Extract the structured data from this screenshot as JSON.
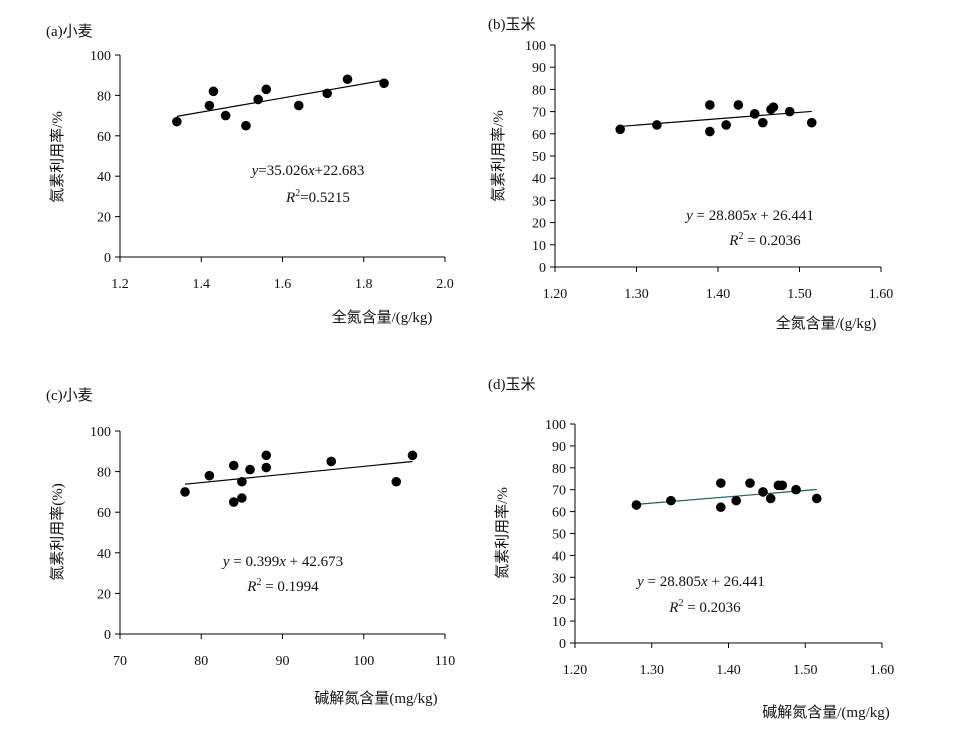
{
  "chart_data": [
    {
      "type": "scatter",
      "title": "(a)小麦",
      "xlabel": "全氮含量/(g/kg)",
      "ylabel": "氮素利用率/%",
      "xlim": [
        1.2,
        2.0
      ],
      "ylim": [
        0,
        100
      ],
      "xticks": [
        1.2,
        1.4,
        1.6,
        1.8,
        2.0
      ],
      "xtick_labels": [
        "1.2",
        "1.4",
        "1.6",
        "1.8",
        "2.0"
      ],
      "yticks": [
        0,
        20,
        40,
        60,
        80,
        100
      ],
      "ytick_labels": [
        "0",
        "20",
        "40",
        "60",
        "80",
        "100"
      ],
      "points": [
        [
          1.34,
          67
        ],
        [
          1.42,
          75
        ],
        [
          1.43,
          82
        ],
        [
          1.46,
          70
        ],
        [
          1.51,
          65
        ],
        [
          1.54,
          78
        ],
        [
          1.56,
          83
        ],
        [
          1.64,
          75
        ],
        [
          1.71,
          81
        ],
        [
          1.76,
          88
        ],
        [
          1.85,
          86
        ]
      ],
      "trendline": {
        "slope": 35.026,
        "intercept": 22.683,
        "x_range": [
          1.34,
          1.85
        ]
      },
      "equation": "y=35.026x+22.683",
      "r2": "R2=0.5215",
      "grid": false,
      "legend": "none"
    },
    {
      "type": "scatter",
      "title": "(b)玉米",
      "xlabel": "全氮含量/(g/kg)",
      "ylabel": "氮素利用率/%",
      "xlim": [
        1.2,
        1.6
      ],
      "ylim": [
        0,
        100
      ],
      "xticks": [
        1.2,
        1.3,
        1.4,
        1.5,
        1.6
      ],
      "xtick_labels": [
        "1.20",
        "1.30",
        "1.40",
        "1.50",
        "1.60"
      ],
      "yticks": [
        0,
        10,
        20,
        30,
        40,
        50,
        60,
        70,
        80,
        90,
        100
      ],
      "ytick_labels": [
        "0",
        "10",
        "20",
        "30",
        "40",
        "50",
        "60",
        "70",
        "80",
        "90",
        "100"
      ],
      "points": [
        [
          1.28,
          62
        ],
        [
          1.325,
          64
        ],
        [
          1.39,
          73
        ],
        [
          1.39,
          61
        ],
        [
          1.41,
          64
        ],
        [
          1.425,
          73
        ],
        [
          1.445,
          69
        ],
        [
          1.455,
          65
        ],
        [
          1.465,
          71
        ],
        [
          1.468,
          72
        ],
        [
          1.488,
          70
        ],
        [
          1.515,
          65
        ]
      ],
      "trendline": {
        "slope": 28.805,
        "intercept": 26.441,
        "x_range": [
          1.28,
          1.515
        ]
      },
      "equation": "y = 28.805x + 26.441",
      "r2": "R2 = 0.2036",
      "grid": false,
      "legend": "none"
    },
    {
      "type": "scatter",
      "title": "(c)小麦",
      "xlabel": "碱解氮含量(mg/kg)",
      "ylabel": "氮素利用率(%)",
      "xlim": [
        70,
        110
      ],
      "ylim": [
        0,
        100
      ],
      "xticks": [
        70,
        80,
        90,
        100,
        110
      ],
      "xtick_labels": [
        "70",
        "80",
        "90",
        "100",
        "110"
      ],
      "yticks": [
        0,
        20,
        40,
        60,
        80,
        100
      ],
      "ytick_labels": [
        "0",
        "20",
        "40",
        "60",
        "80",
        "100"
      ],
      "points": [
        [
          78,
          70
        ],
        [
          81,
          78
        ],
        [
          84,
          83
        ],
        [
          84,
          65
        ],
        [
          85,
          75
        ],
        [
          85,
          67
        ],
        [
          86,
          81
        ],
        [
          88,
          88
        ],
        [
          88,
          82
        ],
        [
          96,
          85
        ],
        [
          104,
          75
        ],
        [
          106,
          88
        ]
      ],
      "trendline": {
        "slope": 0.399,
        "intercept": 42.673,
        "x_range": [
          78,
          106
        ]
      },
      "equation": "y = 0.399x + 42.673",
      "r2": "R2 = 0.1994",
      "grid": false,
      "legend": "none"
    },
    {
      "type": "scatter",
      "title": "(d)玉米",
      "xlabel": "碱解氮含量/(mg/kg)",
      "ylabel": "氮素利用率/%",
      "xlim": [
        1.2,
        1.6
      ],
      "ylim": [
        0,
        100
      ],
      "xticks": [
        1.2,
        1.3,
        1.4,
        1.5,
        1.6
      ],
      "xtick_labels": [
        "1.20",
        "1.30",
        "1.40",
        "1.50",
        "1.60"
      ],
      "yticks": [
        0,
        10,
        20,
        30,
        40,
        50,
        60,
        70,
        80,
        90,
        100
      ],
      "ytick_labels": [
        "0",
        "10",
        "20",
        "30",
        "40",
        "50",
        "60",
        "70",
        "80",
        "90",
        "100"
      ],
      "points": [
        [
          1.28,
          63
        ],
        [
          1.325,
          65
        ],
        [
          1.39,
          73
        ],
        [
          1.39,
          62
        ],
        [
          1.41,
          65
        ],
        [
          1.428,
          73
        ],
        [
          1.445,
          69
        ],
        [
          1.455,
          66
        ],
        [
          1.465,
          72
        ],
        [
          1.47,
          72
        ],
        [
          1.488,
          70
        ],
        [
          1.515,
          66
        ]
      ],
      "trendline": {
        "slope": 28.805,
        "intercept": 26.441,
        "x_range": [
          1.28,
          1.515
        ]
      },
      "equation": "y = 28.805x + 26.441",
      "r2": "R2 = 0.2036",
      "grid": false,
      "legend": "none"
    }
  ]
}
